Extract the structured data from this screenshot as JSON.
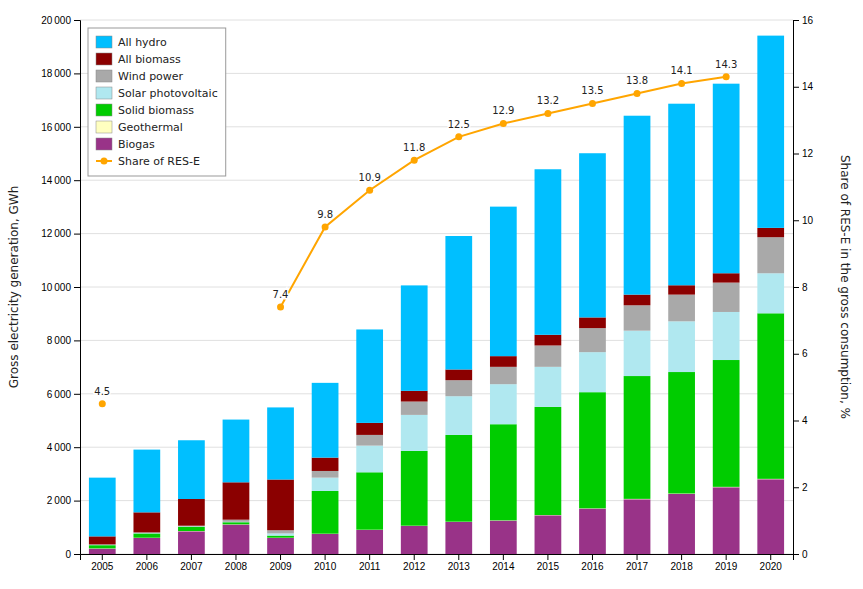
{
  "chart_data": {
    "type": "bar",
    "stacked": true,
    "grid": true,
    "legend": "upper left",
    "y_label": "Gross electricity generation, GWh",
    "y2_label": "Share of RES-E in the gross consumption, %",
    "categories": [
      "2005",
      "2006",
      "2007",
      "2008",
      "2009",
      "2010",
      "2011",
      "2012",
      "2013",
      "2014",
      "2015",
      "2016",
      "2017",
      "2018",
      "2019",
      "2020"
    ],
    "ylim": [
      0,
      20000
    ],
    "yticks": [
      0,
      {
        "value": 2000,
        "label": "2 000"
      },
      {
        "value": 4000,
        "label": "4 000"
      },
      {
        "value": 6000,
        "label": "6 000"
      },
      {
        "value": 8000,
        "label": "8 000"
      },
      {
        "value": 10000,
        "label": "10 000"
      },
      {
        "value": 12000,
        "label": "12 000"
      },
      {
        "value": 14000,
        "label": "14 000"
      },
      {
        "value": 16000,
        "label": "16 000"
      },
      {
        "value": 18000,
        "label": "18 000"
      },
      {
        "value": 20000,
        "label": "20 000"
      }
    ],
    "y2lim": [
      0,
      16
    ],
    "y2ticks": [
      0,
      2,
      4,
      6,
      8,
      10,
      12,
      14,
      16
    ],
    "series": [
      {
        "name": "Biogas",
        "color": "#993388",
        "values": [
          200,
          600,
          850,
          1100,
          600,
          750,
          900,
          1050,
          1200,
          1250,
          1450,
          1700,
          2050,
          2250,
          2500,
          2800
        ]
      },
      {
        "name": "Geothermal",
        "color": "#FFFFC0",
        "values": [
          10,
          10,
          10,
          10,
          10,
          10,
          10,
          10,
          10,
          10,
          10,
          10,
          15,
          15,
          15,
          15
        ]
      },
      {
        "name": "Solid biomass",
        "color": "#00CC00",
        "values": [
          120,
          160,
          160,
          80,
          80,
          1600,
          2150,
          2800,
          3250,
          3600,
          4050,
          4350,
          4600,
          4550,
          4750,
          6200
        ]
      },
      {
        "name": "Solar photovoltaic",
        "color": "#B0E8F0",
        "values": [
          10,
          15,
          15,
          15,
          80,
          500,
          1000,
          1350,
          1450,
          1500,
          1500,
          1500,
          1700,
          1900,
          1800,
          1500
        ]
      },
      {
        "name": "Wind power",
        "color": "#A9A9A9",
        "values": [
          20,
          25,
          25,
          80,
          120,
          250,
          400,
          500,
          600,
          650,
          800,
          900,
          950,
          1000,
          1100,
          1350
        ]
      },
      {
        "name": "All biomass",
        "color": "#8B0000",
        "values": [
          300,
          750,
          1000,
          1400,
          1900,
          500,
          450,
          400,
          400,
          400,
          400,
          400,
          400,
          350,
          350,
          350
        ]
      },
      {
        "name": "All hydro",
        "color": "#00BFFF",
        "values": [
          2200,
          2350,
          2200,
          2350,
          2700,
          2800,
          3500,
          3950,
          5000,
          5600,
          6200,
          6150,
          6700,
          6800,
          7100,
          7200
        ]
      },
      {
        "name": "Share of RES-E",
        "type": "line",
        "axis": "y2",
        "color": "#FFA500",
        "marker": "circle",
        "data_labels": true,
        "values": [
          4.5,
          null,
          null,
          null,
          7.4,
          9.8,
          10.9,
          11.8,
          12.5,
          12.9,
          13.2,
          13.5,
          13.8,
          14.1,
          14.3,
          null
        ]
      }
    ]
  }
}
